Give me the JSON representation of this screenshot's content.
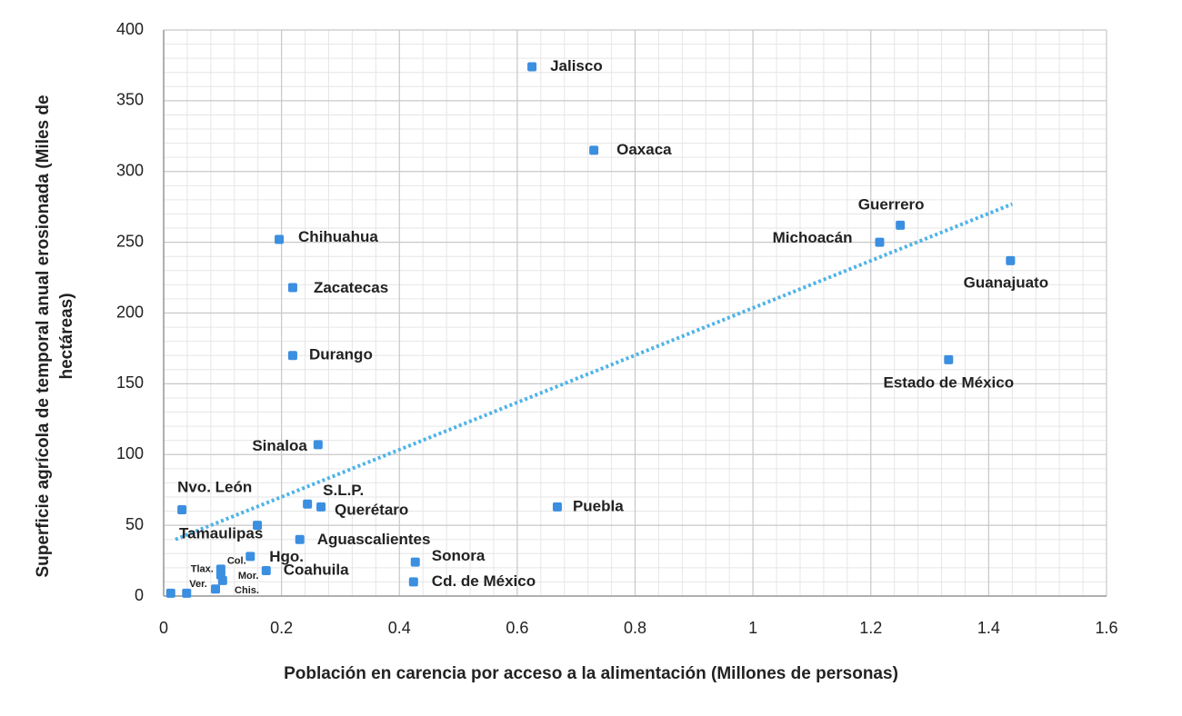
{
  "chart_data": {
    "type": "scatter",
    "x_label": "Población en carencia por acceso a la alimentación (Millones de personas)",
    "y_label": [
      "Superficie agrícola de temporal anual erosionada (Miles de",
      "hectáreas)"
    ],
    "xlim": [
      0,
      1.6
    ],
    "xticks": [
      0,
      0.2,
      0.4,
      0.6,
      0.8,
      1,
      1.2,
      1.4,
      1.6
    ],
    "ylim": [
      0,
      400
    ],
    "yticks": [
      0,
      50,
      100,
      150,
      200,
      250,
      300,
      350,
      400
    ],
    "grid": true,
    "minor_grid": true,
    "color": "#3b8fe0",
    "labels": [
      "Jalisco",
      "Oaxaca",
      "Chihuahua",
      "Zacatecas",
      "Durango",
      "Sinaloa",
      "Guerrero",
      "Michoacán",
      "Guanajuato",
      "Estado de México",
      "Puebla",
      "Nvo. León",
      "S.L.P.",
      "Querétaro",
      "Tamaulipas",
      "Aguascalientes",
      "Sonora",
      "Cd. de México",
      "Hgo.",
      "Coahuila",
      "Col.",
      "Tlax.",
      "Mor.",
      "Ver.",
      "Chis.",
      null
    ],
    "x": [
      0.625,
      0.73,
      0.196,
      0.219,
      0.219,
      0.262,
      1.25,
      1.215,
      1.437,
      1.332,
      0.668,
      0.031,
      0.244,
      0.267,
      0.159,
      0.231,
      0.427,
      0.424,
      0.147,
      0.174,
      0.097,
      0.097,
      0.1,
      0.039,
      0.088,
      0.012
    ],
    "y": [
      374,
      315,
      252,
      218,
      170,
      107,
      262,
      250,
      237,
      167,
      63,
      61,
      65,
      63,
      50,
      40,
      24,
      10,
      28,
      18,
      19,
      15,
      11,
      2,
      5,
      2
    ],
    "trendline": {
      "color": "#4fb3e8",
      "x": [
        0.02,
        1.44
      ],
      "y": [
        40,
        277
      ]
    }
  }
}
